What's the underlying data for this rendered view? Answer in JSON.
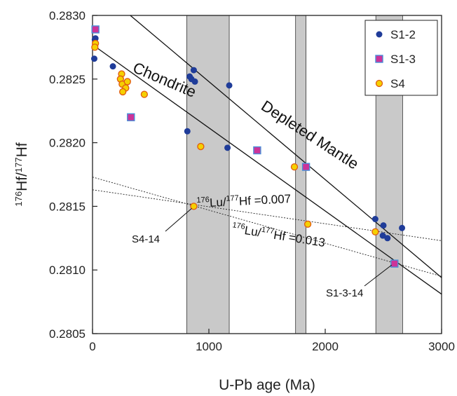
{
  "chart_data": {
    "type": "scatter",
    "xlabel": "U-Pb age (Ma)",
    "ylabel": {
      "sup1": "176",
      "base1": "Hf/",
      "sup2": "177",
      "base2": "Hf"
    },
    "xlim": [
      0,
      3000
    ],
    "ylim": [
      0.2805,
      0.283
    ],
    "x_ticks": [
      "0",
      "1000",
      "2000",
      "3000"
    ],
    "y_ticks": [
      "0.2805",
      "0.2810",
      "0.2815",
      "0.2820",
      "0.2825",
      "0.2830"
    ],
    "x_tick_values": [
      0,
      1000,
      2000,
      3000
    ],
    "y_tick_values": [
      0.2805,
      0.281,
      0.2815,
      0.282,
      0.2825,
      0.283
    ],
    "grid": false,
    "legend_position": "top-right",
    "bands": [
      {
        "x0": 810,
        "x1": 1175
      },
      {
        "x0": 1745,
        "x1": 1835
      },
      {
        "x0": 2435,
        "x1": 2665
      }
    ],
    "reference_lines": [
      {
        "label": "Chondrite",
        "x": [
          0,
          3000
        ],
        "y": [
          0.28277,
          0.28081
        ]
      },
      {
        "label": "Depleted Mantle",
        "x": [
          0,
          3000
        ],
        "y": [
          0.28325,
          0.28094
        ]
      }
    ],
    "evolution_lines": [
      {
        "label_parts": {
          "s1": "176",
          "b1": "Lu/",
          "s2": "177",
          "b2": "Hf =0.007"
        },
        "x": [
          0,
          3000
        ],
        "y": [
          0.28163,
          0.28123
        ]
      },
      {
        "label_parts": {
          "s1": "176",
          "b1": "Lu/",
          "s2": "177",
          "b2": "Hf =0.013"
        },
        "x": [
          0,
          3000
        ],
        "y": [
          0.28173,
          0.28095
        ]
      }
    ],
    "series": [
      {
        "name": "S1-2",
        "marker": "circle",
        "color": "#1f3c99",
        "points": [
          [
            25,
            0.28282
          ],
          [
            20,
            0.28281
          ],
          [
            15,
            0.28266
          ],
          [
            175,
            0.2826
          ],
          [
            835,
            0.28252
          ],
          [
            850,
            0.2825
          ],
          [
            870,
            0.28257
          ],
          [
            880,
            0.28248
          ],
          [
            815,
            0.28209
          ],
          [
            1160,
            0.28196
          ],
          [
            1175,
            0.28245
          ],
          [
            2430,
            0.2814
          ],
          [
            2500,
            0.28135
          ],
          [
            2495,
            0.28127
          ],
          [
            2535,
            0.28125
          ],
          [
            2660,
            0.28133
          ]
        ]
      },
      {
        "name": "S1-3",
        "marker": "square",
        "color": "#cc3399",
        "points": [
          [
            25,
            0.28289
          ],
          [
            330,
            0.2822
          ],
          [
            1415,
            0.28194
          ],
          [
            1835,
            0.28181
          ],
          [
            2595,
            0.28105
          ]
        ]
      },
      {
        "name": "S4",
        "marker": "circle",
        "color": "#f5d000",
        "points": [
          [
            25,
            0.28278
          ],
          [
            20,
            0.28275
          ],
          [
            250,
            0.28254
          ],
          [
            240,
            0.2825
          ],
          [
            255,
            0.28246
          ],
          [
            300,
            0.28248
          ],
          [
            285,
            0.28243
          ],
          [
            260,
            0.2824
          ],
          [
            445,
            0.28238
          ],
          [
            870,
            0.2815
          ],
          [
            930,
            0.28197
          ],
          [
            1735,
            0.28181
          ],
          [
            1850,
            0.28136
          ],
          [
            2430,
            0.2813
          ]
        ]
      }
    ],
    "annotations": [
      {
        "text": "Chondrite"
      },
      {
        "text": "Depleted Mantle"
      },
      {
        "text": "S4-14",
        "target": [
          870,
          0.2815
        ]
      },
      {
        "text": "S1-3-14",
        "target": [
          2595,
          0.28105
        ]
      }
    ]
  }
}
